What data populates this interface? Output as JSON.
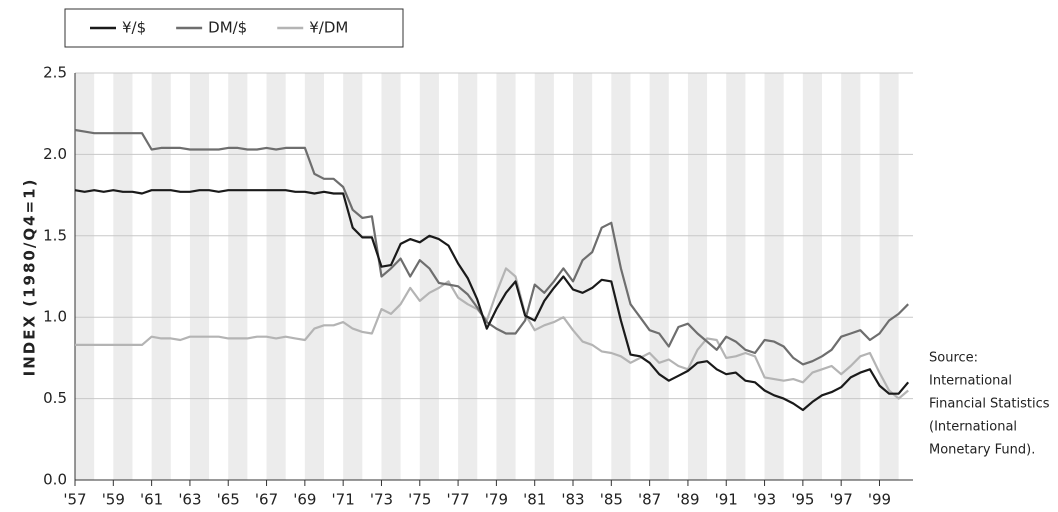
{
  "chart_data": {
    "type": "line",
    "y_label": "INDEX (1980/Q4=1)",
    "annotation": [
      "Source:",
      "International",
      "Financial Statistics",
      "(International",
      "Monetary Fund)."
    ],
    "x": [
      1957,
      1957.5,
      1958,
      1958.5,
      1959,
      1959.5,
      1960,
      1960.5,
      1961,
      1961.5,
      1962,
      1962.5,
      1963,
      1963.5,
      1964,
      1964.5,
      1965,
      1965.5,
      1966,
      1966.5,
      1967,
      1967.5,
      1968,
      1968.5,
      1969,
      1969.5,
      1970,
      1970.5,
      1971,
      1971.5,
      1972,
      1972.5,
      1973,
      1973.5,
      1974,
      1974.5,
      1975,
      1975.5,
      1976,
      1976.5,
      1977,
      1977.5,
      1978,
      1978.5,
      1979,
      1979.5,
      1980,
      1980.5,
      1981,
      1981.5,
      1982,
      1982.5,
      1983,
      1983.5,
      1984,
      1984.5,
      1985,
      1985.5,
      1986,
      1986.5,
      1987,
      1987.5,
      1988,
      1988.5,
      1989,
      1989.5,
      1990,
      1990.5,
      1991,
      1991.5,
      1992,
      1992.5,
      1993,
      1993.5,
      1994,
      1994.5,
      1995,
      1995.5,
      1996,
      1996.5,
      1997,
      1997.5,
      1998,
      1998.5,
      1999,
      1999.5,
      2000,
      2000.5
    ],
    "series": [
      {
        "name": "¥/$",
        "color": "#1a1a1a",
        "values": [
          1.78,
          1.77,
          1.78,
          1.77,
          1.78,
          1.77,
          1.77,
          1.76,
          1.78,
          1.78,
          1.78,
          1.77,
          1.77,
          1.78,
          1.78,
          1.77,
          1.78,
          1.78,
          1.78,
          1.78,
          1.78,
          1.78,
          1.78,
          1.77,
          1.77,
          1.76,
          1.77,
          1.76,
          1.76,
          1.55,
          1.49,
          1.49,
          1.31,
          1.32,
          1.45,
          1.48,
          1.46,
          1.5,
          1.48,
          1.44,
          1.33,
          1.24,
          1.11,
          0.93,
          1.05,
          1.15,
          1.22,
          1.01,
          0.98,
          1.1,
          1.18,
          1.25,
          1.17,
          1.15,
          1.18,
          1.23,
          1.22,
          0.98,
          0.77,
          0.76,
          0.72,
          0.65,
          0.61,
          0.64,
          0.67,
          0.72,
          0.73,
          0.68,
          0.65,
          0.66,
          0.61,
          0.6,
          0.55,
          0.52,
          0.5,
          0.47,
          0.43,
          0.48,
          0.52,
          0.54,
          0.57,
          0.63,
          0.66,
          0.68,
          0.58,
          0.53,
          0.53,
          0.6
        ]
      },
      {
        "name": "DM/$",
        "color": "#6e6e6e",
        "values": [
          2.15,
          2.14,
          2.13,
          2.13,
          2.13,
          2.13,
          2.13,
          2.13,
          2.03,
          2.04,
          2.04,
          2.04,
          2.03,
          2.03,
          2.03,
          2.03,
          2.04,
          2.04,
          2.03,
          2.03,
          2.04,
          2.03,
          2.04,
          2.04,
          2.04,
          1.88,
          1.85,
          1.85,
          1.8,
          1.66,
          1.61,
          1.62,
          1.25,
          1.3,
          1.36,
          1.25,
          1.35,
          1.3,
          1.21,
          1.2,
          1.19,
          1.14,
          1.06,
          0.97,
          0.93,
          0.9,
          0.9,
          0.98,
          1.2,
          1.15,
          1.22,
          1.3,
          1.22,
          1.35,
          1.4,
          1.55,
          1.58,
          1.3,
          1.08,
          1.0,
          0.92,
          0.9,
          0.82,
          0.94,
          0.96,
          0.9,
          0.85,
          0.8,
          0.88,
          0.85,
          0.8,
          0.78,
          0.86,
          0.85,
          0.82,
          0.75,
          0.71,
          0.73,
          0.76,
          0.8,
          0.88,
          0.9,
          0.92,
          0.86,
          0.9,
          0.98,
          1.02,
          1.08
        ]
      },
      {
        "name": "¥/DM",
        "color": "#b4b4b4",
        "values": [
          0.83,
          0.83,
          0.83,
          0.83,
          0.83,
          0.83,
          0.83,
          0.83,
          0.88,
          0.87,
          0.87,
          0.86,
          0.88,
          0.88,
          0.88,
          0.88,
          0.87,
          0.87,
          0.87,
          0.88,
          0.88,
          0.87,
          0.88,
          0.87,
          0.86,
          0.93,
          0.95,
          0.95,
          0.97,
          0.93,
          0.91,
          0.9,
          1.05,
          1.02,
          1.08,
          1.18,
          1.1,
          1.15,
          1.18,
          1.22,
          1.12,
          1.08,
          1.05,
          0.98,
          1.15,
          1.3,
          1.25,
          1.02,
          0.92,
          0.95,
          0.97,
          1.0,
          0.92,
          0.85,
          0.83,
          0.79,
          0.78,
          0.76,
          0.72,
          0.75,
          0.78,
          0.72,
          0.74,
          0.7,
          0.68,
          0.8,
          0.87,
          0.86,
          0.75,
          0.76,
          0.78,
          0.76,
          0.63,
          0.62,
          0.61,
          0.62,
          0.6,
          0.66,
          0.68,
          0.7,
          0.65,
          0.7,
          0.76,
          0.78,
          0.66,
          0.55,
          0.5,
          0.55
        ]
      }
    ],
    "xlim": [
      1957,
      2000.75
    ],
    "xticks": [
      {
        "value": 1957,
        "label": "'57"
      },
      {
        "value": 1959,
        "label": "'59"
      },
      {
        "value": 1961,
        "label": "'61"
      },
      {
        "value": 1963,
        "label": "'63"
      },
      {
        "value": 1965,
        "label": "'65"
      },
      {
        "value": 1967,
        "label": "'67"
      },
      {
        "value": 1969,
        "label": "'69"
      },
      {
        "value": 1971,
        "label": "'71"
      },
      {
        "value": 1973,
        "label": "'73"
      },
      {
        "value": 1975,
        "label": "'75"
      },
      {
        "value": 1977,
        "label": "'77"
      },
      {
        "value": 1979,
        "label": "'79"
      },
      {
        "value": 1981,
        "label": "'81"
      },
      {
        "value": 1983,
        "label": "'83"
      },
      {
        "value": 1985,
        "label": "'85"
      },
      {
        "value": 1987,
        "label": "'87"
      },
      {
        "value": 1989,
        "label": "'89"
      },
      {
        "value": 1991,
        "label": "'91"
      },
      {
        "value": 1993,
        "label": "'93"
      },
      {
        "value": 1995,
        "label": "'95"
      },
      {
        "value": 1997,
        "label": "'97"
      },
      {
        "value": 1999,
        "label": "'99"
      }
    ],
    "ylim": [
      0,
      2.5
    ],
    "yticks": [
      {
        "value": 0,
        "label": "0.0"
      },
      {
        "value": 0.5,
        "label": "0.5"
      },
      {
        "value": 1,
        "label": "1.0"
      },
      {
        "value": 1.5,
        "label": "1.5"
      },
      {
        "value": 2,
        "label": "2.0"
      },
      {
        "value": 2.5,
        "label": "2.5"
      }
    ],
    "grid": true,
    "legend": "top-left"
  }
}
